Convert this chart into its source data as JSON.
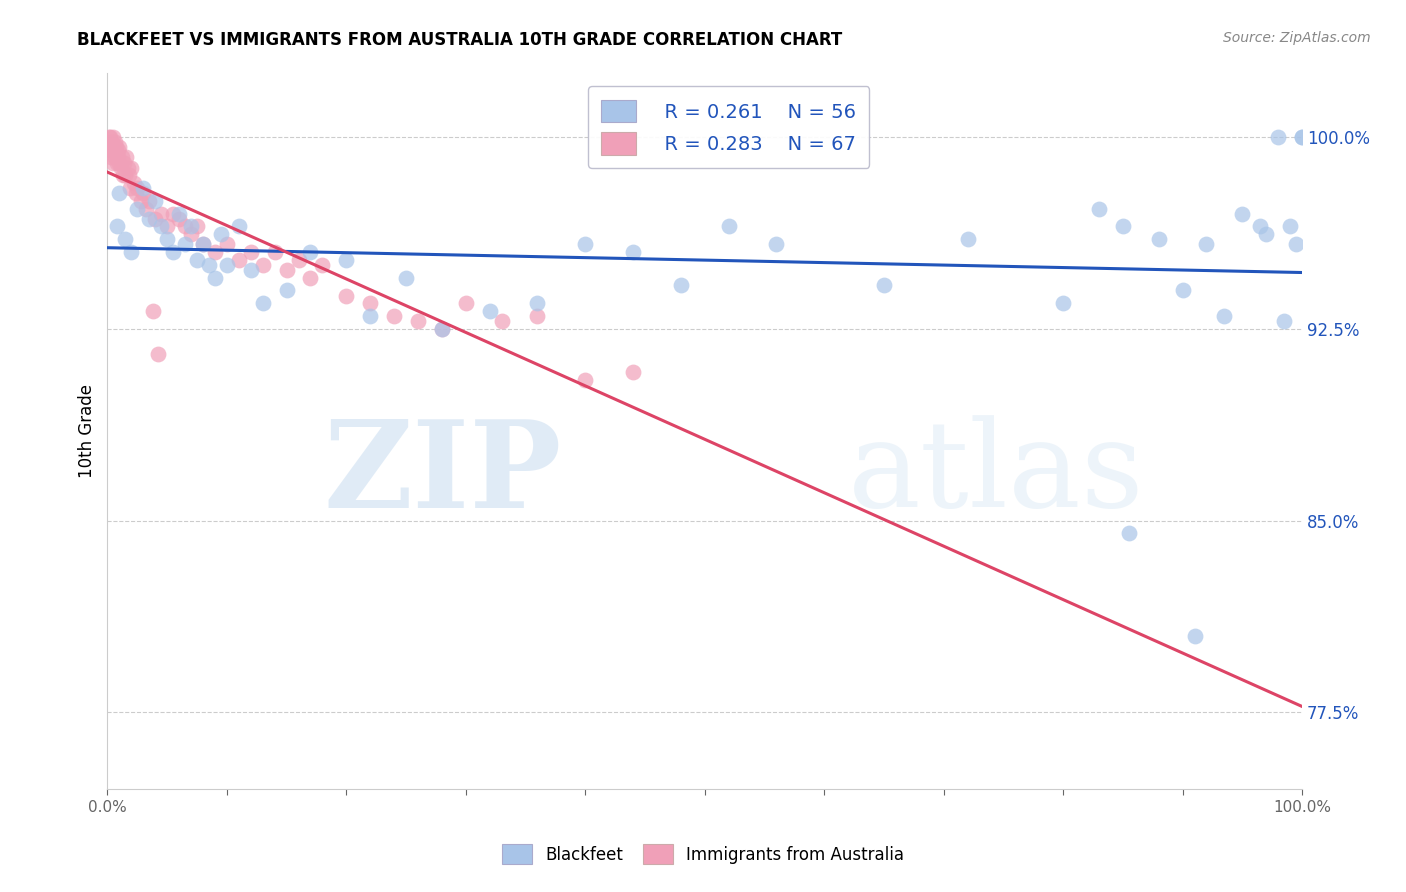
{
  "title": "BLACKFEET VS IMMIGRANTS FROM AUSTRALIA 10TH GRADE CORRELATION CHART",
  "source": "Source: ZipAtlas.com",
  "ylabel": "10th Grade",
  "ytick_values": [
    77.5,
    85.0,
    92.5,
    100.0
  ],
  "xmin": 0.0,
  "xmax": 100.0,
  "ymin": 74.5,
  "ymax": 102.5,
  "legend_blue_label": "Blackfeet",
  "legend_pink_label": "Immigrants from Australia",
  "blue_R": "0.261",
  "blue_N": "56",
  "pink_R": "0.283",
  "pink_N": "67",
  "blue_color": "#a8c4e8",
  "pink_color": "#f0a0b8",
  "blue_line_color": "#2255bb",
  "pink_line_color": "#dd4466",
  "watermark_zip": "ZIP",
  "watermark_atlas": "atlas",
  "blue_scatter_x": [
    0.8,
    1.0,
    1.5,
    2.0,
    2.5,
    3.0,
    3.5,
    4.0,
    4.5,
    5.0,
    5.5,
    6.0,
    6.5,
    7.0,
    7.5,
    8.0,
    8.5,
    9.0,
    9.5,
    10.0,
    11.0,
    12.0,
    13.0,
    15.0,
    17.0,
    20.0,
    22.0,
    25.0,
    28.0,
    32.0,
    36.0,
    40.0,
    44.0,
    48.0,
    52.0,
    56.0,
    65.0,
    72.0,
    80.0,
    83.0,
    85.0,
    88.0,
    90.0,
    92.0,
    95.0,
    97.0,
    98.0,
    99.0,
    99.5,
    100.0,
    100.0,
    85.5,
    91.0,
    93.5,
    96.5,
    98.5
  ],
  "blue_scatter_y": [
    96.5,
    97.8,
    96.0,
    95.5,
    97.2,
    98.0,
    96.8,
    97.5,
    96.5,
    96.0,
    95.5,
    97.0,
    95.8,
    96.5,
    95.2,
    95.8,
    95.0,
    94.5,
    96.2,
    95.0,
    96.5,
    94.8,
    93.5,
    94.0,
    95.5,
    95.2,
    93.0,
    94.5,
    92.5,
    93.2,
    93.5,
    95.8,
    95.5,
    94.2,
    96.5,
    95.8,
    94.2,
    96.0,
    93.5,
    97.2,
    96.5,
    96.0,
    94.0,
    95.8,
    97.0,
    96.2,
    100.0,
    96.5,
    95.8,
    100.0,
    100.0,
    84.5,
    80.5,
    93.0,
    96.5,
    92.8
  ],
  "pink_scatter_x": [
    0.1,
    0.15,
    0.2,
    0.25,
    0.3,
    0.35,
    0.4,
    0.45,
    0.5,
    0.55,
    0.6,
    0.65,
    0.7,
    0.75,
    0.8,
    0.85,
    0.9,
    0.95,
    1.0,
    1.1,
    1.2,
    1.3,
    1.4,
    1.5,
    1.6,
    1.7,
    1.8,
    1.9,
    2.0,
    2.2,
    2.4,
    2.5,
    2.8,
    3.0,
    3.2,
    3.5,
    4.0,
    4.5,
    5.0,
    5.5,
    6.0,
    6.5,
    7.0,
    7.5,
    8.0,
    9.0,
    10.0,
    11.0,
    12.0,
    13.0,
    14.0,
    15.0,
    16.0,
    17.0,
    18.0,
    20.0,
    22.0,
    24.0,
    26.0,
    28.0,
    30.0,
    33.0,
    36.0,
    40.0,
    44.0,
    3.8,
    4.2
  ],
  "pink_scatter_y": [
    100.0,
    99.5,
    99.8,
    100.0,
    99.2,
    99.8,
    99.5,
    100.0,
    99.0,
    99.5,
    99.8,
    99.2,
    99.6,
    99.4,
    99.0,
    99.5,
    99.2,
    99.6,
    99.0,
    98.8,
    99.2,
    98.5,
    99.0,
    98.5,
    99.2,
    98.8,
    98.5,
    98.0,
    98.8,
    98.2,
    97.8,
    98.0,
    97.5,
    97.8,
    97.2,
    97.5,
    96.8,
    97.0,
    96.5,
    97.0,
    96.8,
    96.5,
    96.2,
    96.5,
    95.8,
    95.5,
    95.8,
    95.2,
    95.5,
    95.0,
    95.5,
    94.8,
    95.2,
    94.5,
    95.0,
    93.8,
    93.5,
    93.0,
    92.8,
    92.5,
    93.5,
    92.8,
    93.0,
    90.5,
    90.8,
    93.2,
    91.5
  ]
}
